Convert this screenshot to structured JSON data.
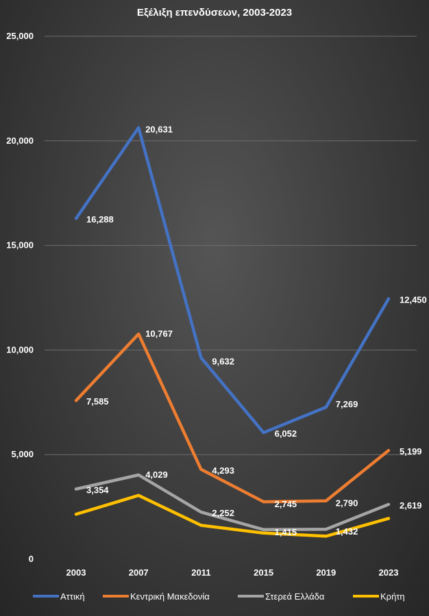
{
  "chart_data": {
    "type": "line",
    "title": "Εξέλιξη επενδύσεων, 2003-2023",
    "categories": [
      "2003",
      "2007",
      "2011",
      "2015",
      "2019",
      "2023"
    ],
    "ylim": [
      0,
      25000
    ],
    "yticks": [
      "0",
      "5,000",
      "10,000",
      "15,000",
      "20,000",
      "25,000"
    ],
    "ytick_values": [
      0,
      5000,
      10000,
      15000,
      20000,
      25000
    ],
    "grid": true,
    "legend_position": "bottom",
    "series": [
      {
        "name": "Αττική",
        "color": "#4472C4",
        "values": [
          16288,
          20631,
          9632,
          6052,
          7269,
          12450
        ],
        "labels": [
          "16,288",
          "20,631",
          "9,632",
          "6,052",
          "7,269",
          "12,450"
        ]
      },
      {
        "name": "Κεντρική Μακεδονία",
        "color": "#ED7D31",
        "values": [
          7585,
          10767,
          4293,
          2745,
          2790,
          5199
        ],
        "labels": [
          "7,585",
          "10,767",
          "4,293",
          "2,745",
          "2,790",
          "5,199"
        ]
      },
      {
        "name": "Στερεά Ελλάδα",
        "color": "#A5A5A5",
        "values": [
          3354,
          4029,
          2252,
          1415,
          1432,
          2619
        ],
        "labels": [
          "3,354",
          "4,029",
          "2,252",
          "1,415",
          "1,432",
          "2,619"
        ]
      },
      {
        "name": "Κρήτη",
        "color": "#FFC000",
        "values": [
          2150,
          3050,
          1620,
          1250,
          1100,
          1950
        ],
        "labels": []
      }
    ]
  }
}
